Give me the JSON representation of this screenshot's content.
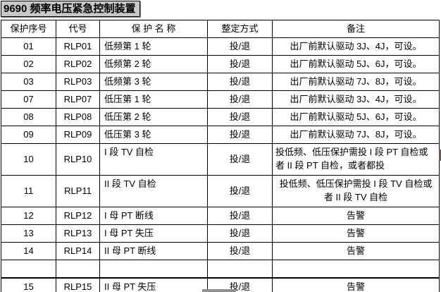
{
  "page": {
    "title": "9690 频率电压紧急控制装置"
  },
  "table": {
    "headers": [
      "保护序号",
      "代号",
      "保 护 名 称",
      "整定方式",
      "备注"
    ],
    "rows": [
      {
        "no": "01",
        "code": "RLP01",
        "name": "低频第 1 轮",
        "mode": "投/退",
        "remark": "出厂前默认驱动 3J、4J，可设。"
      },
      {
        "no": "02",
        "code": "RLP02",
        "name": "低频第 2 轮",
        "mode": "投/退",
        "remark": "出厂前默认驱动 5J、6J，可设。"
      },
      {
        "no": "03",
        "code": "RLP03",
        "name": "低频第 3 轮",
        "mode": "投/退",
        "remark": "出厂前默认驱动 7J、8J，可设。"
      },
      {
        "no": "07",
        "code": "RLP07",
        "name": "低压第 1 轮",
        "mode": "投/退",
        "remark": "出厂前默认驱动 3J、4J，可设。"
      },
      {
        "no": "08",
        "code": "RLP08",
        "name": "低压第 2 轮",
        "mode": "投/退",
        "remark": "出厂前默认驱动 5J、6J，可设。"
      },
      {
        "no": "09",
        "code": "RLP09",
        "name": "低压第 3 轮",
        "mode": "投/退",
        "remark": "出厂前默认驱动 7J、8J，可设。"
      },
      {
        "no": "10",
        "code": "RLP10",
        "name": "I 段 TV 自检",
        "mode": "投/退",
        "remark": "投低频、低压保护需投 I 段 PT 自检或者 II 段 PT 自检，或者都投"
      },
      {
        "no": "11",
        "code": "RLP11",
        "name": "II 段 TV 自检",
        "mode": "投/退",
        "remark": "投低频、低压保护需投 I 段 TV 自检或者 II 段 TV 自检"
      },
      {
        "no": "12",
        "code": "RLP12",
        "name": "I 母 PT 断线",
        "mode": "投/退",
        "remark": "告警"
      },
      {
        "no": "13",
        "code": "RLP13",
        "name": "I 母 PT 失压",
        "mode": "投/退",
        "remark": "告警"
      },
      {
        "no": "14",
        "code": "RLP14",
        "name": "II 母 PT 断线",
        "mode": "投/退",
        "remark": "告警"
      },
      {
        "no": "",
        "code": "",
        "name": "",
        "mode": "",
        "remark": ""
      },
      {
        "no": "15",
        "code": "RLP15",
        "name": "II 母 PT 失压",
        "mode": "投/退",
        "remark": "告警"
      }
    ]
  },
  "colors": {
    "title_background": "#c8c8c8",
    "table_border": "#000000",
    "scroll_thumb": "#8f8f8f"
  }
}
